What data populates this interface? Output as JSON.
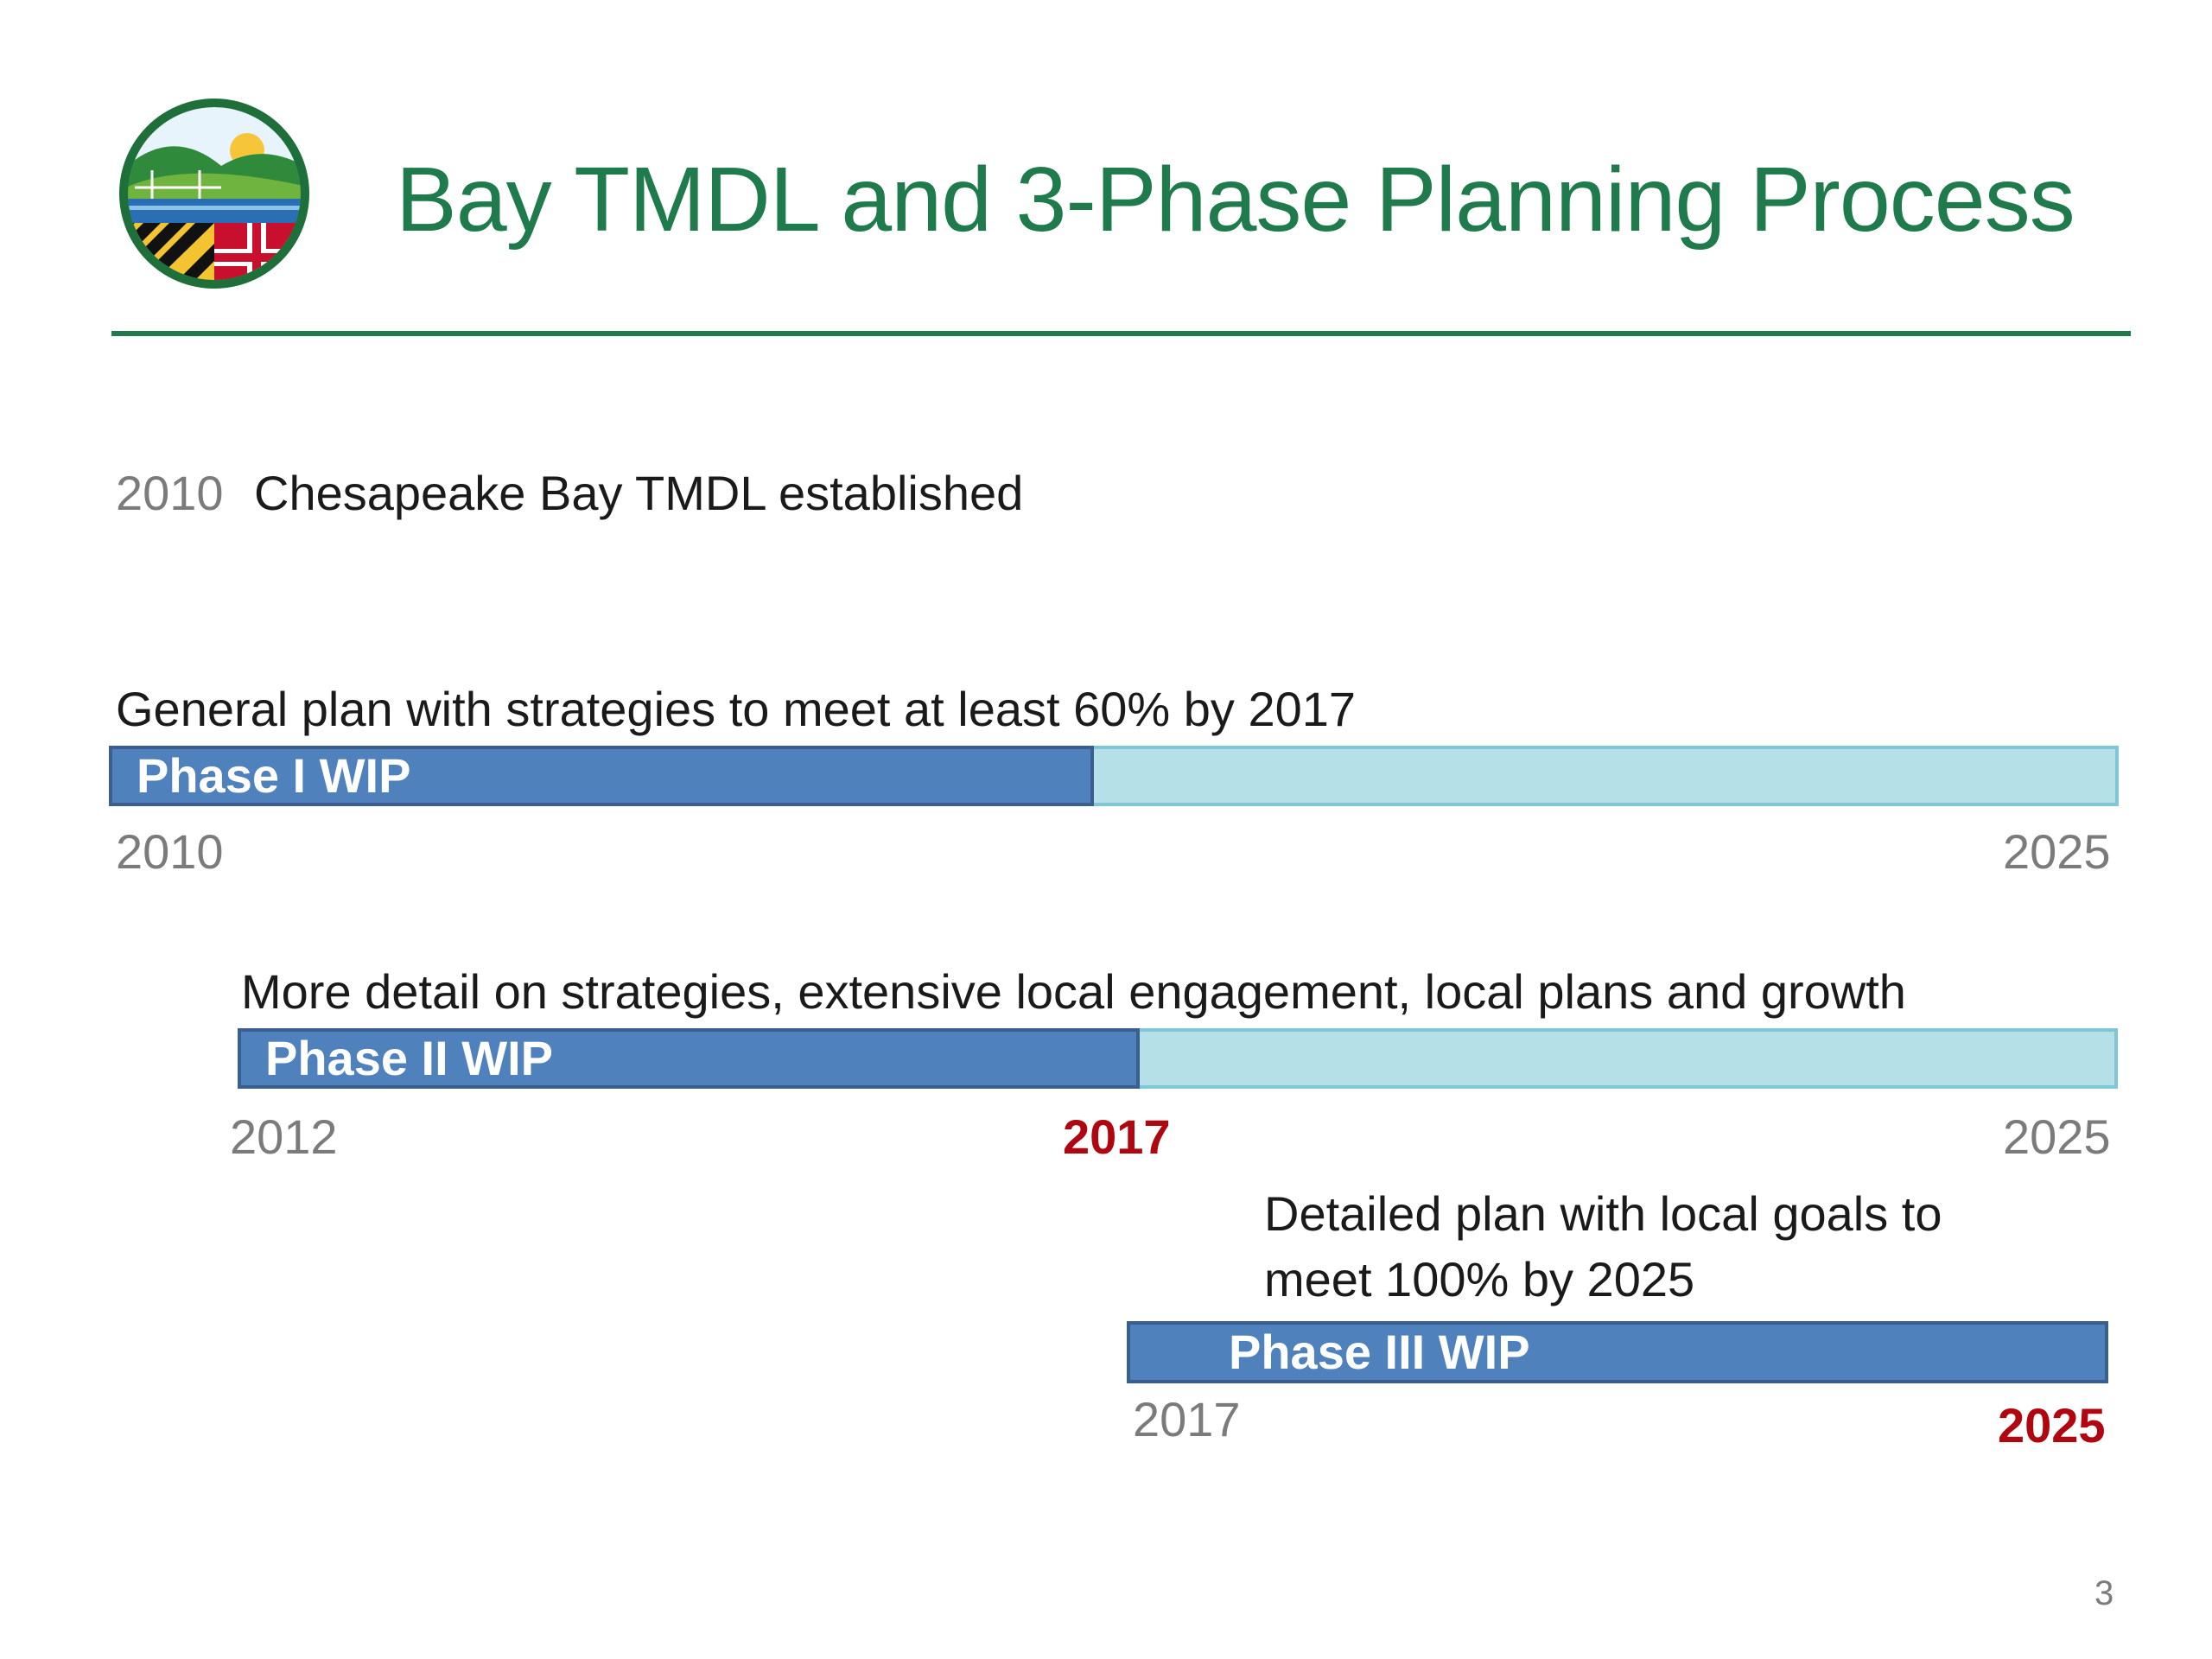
{
  "title": "Bay TMDL and 3-Phase Planning Process",
  "logo": {
    "icon": "maryland-environment-seal"
  },
  "milestone": {
    "year": "2010",
    "text": "Chesapeake Bay TMDL established"
  },
  "phases": [
    {
      "description": "General plan with strategies to meet at least 60% by 2017",
      "label": "Phase I WIP",
      "start_year": "2010",
      "end_year": "2025",
      "progress_fraction": 0.49
    },
    {
      "description": "More detail on strategies, extensive local engagement, local plans and growth",
      "label": "Phase II WIP",
      "start_year": "2012",
      "mid_year": "2017",
      "end_year": "2025",
      "progress_fraction": 0.48
    },
    {
      "description_line1": "Detailed plan with local goals to",
      "description_line2": "meet 100% by 2025",
      "label": "Phase III WIP",
      "start_year": "2017",
      "end_year": "2025",
      "progress_fraction": 1.0
    }
  ],
  "colors": {
    "title_green": "#1f7a4c",
    "bar_blue": "#4f81bd",
    "track_light_blue": "#b6e0e8",
    "highlight_red": "#b0060f"
  },
  "page_number": "3"
}
